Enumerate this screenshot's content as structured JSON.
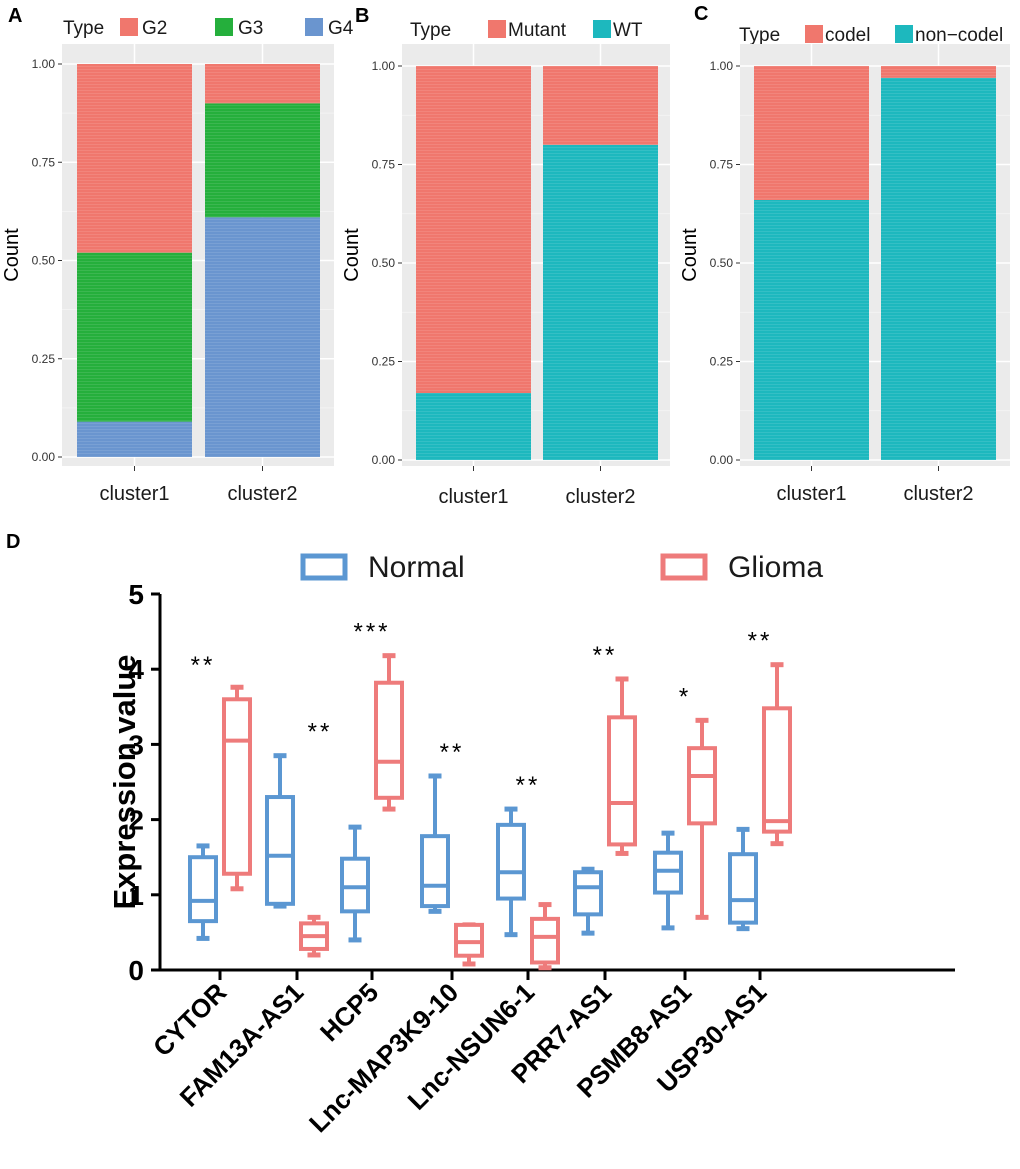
{
  "chart_data": [
    {
      "panel": "A",
      "type": "bar",
      "stacked": true,
      "ylabel": "Count",
      "legend_title": "Type",
      "categories": [
        "cluster1",
        "cluster2"
      ],
      "series": [
        {
          "name": "G2",
          "color": "#F0776D",
          "values": [
            0.48,
            0.1
          ]
        },
        {
          "name": "G3",
          "color": "#25AF3C",
          "values": [
            0.43,
            0.29
          ]
        },
        {
          "name": "G4",
          "color": "#6A95CF",
          "values": [
            0.09,
            0.61
          ]
        }
      ],
      "ylim": [
        0,
        1
      ],
      "yticks": [
        "0.00",
        "0.25",
        "0.50",
        "0.75",
        "1.00"
      ]
    },
    {
      "panel": "B",
      "type": "bar",
      "stacked": true,
      "ylabel": "Count",
      "legend_title": "Type",
      "categories": [
        "cluster1",
        "cluster2"
      ],
      "series": [
        {
          "name": "Mutant",
          "color": "#F0776D",
          "values": [
            0.83,
            0.2
          ]
        },
        {
          "name": "WT",
          "color": "#1DB8BE",
          "values": [
            0.17,
            0.8
          ]
        }
      ],
      "ylim": [
        0,
        1
      ],
      "yticks": [
        "0.00",
        "0.25",
        "0.50",
        "0.75",
        "1.00"
      ]
    },
    {
      "panel": "C",
      "type": "bar",
      "stacked": true,
      "ylabel": "Count",
      "legend_title": "Type",
      "categories": [
        "cluster1",
        "cluster2"
      ],
      "series": [
        {
          "name": "codel",
          "color": "#F0776D",
          "values": [
            0.34,
            0.03
          ]
        },
        {
          "name": "non−codel",
          "color": "#1DB8BE",
          "values": [
            0.66,
            0.97
          ]
        }
      ],
      "ylim": [
        0,
        1
      ],
      "yticks": [
        "0.00",
        "0.25",
        "0.50",
        "0.75",
        "1.00"
      ]
    },
    {
      "panel": "D",
      "type": "box",
      "ylabel": "Expression value",
      "ylim": [
        0,
        5
      ],
      "yticks": [
        "0",
        "1",
        "2",
        "3",
        "4",
        "5"
      ],
      "legend": [
        {
          "name": "Normal",
          "color": "#5B97D2"
        },
        {
          "name": "Glioma",
          "color": "#EE7B7B"
        }
      ],
      "categories": [
        "CYTOR",
        "FAM13A-AS1",
        "HCP5",
        "Lnc-MAP3K9-10",
        "Lnc-NSUN6-1",
        "PRR7-AS1",
        "PSMB8-AS1",
        "USP30-AS1"
      ],
      "significance": [
        "**",
        "**",
        "***",
        "**",
        "**",
        "**",
        "*",
        "**"
      ],
      "normal": [
        {
          "min": 0.42,
          "q1": 0.65,
          "median": 0.92,
          "q3": 1.5,
          "max": 1.65
        },
        {
          "min": 0.85,
          "q1": 0.88,
          "median": 1.52,
          "q3": 2.3,
          "max": 2.85
        },
        {
          "min": 0.4,
          "q1": 0.78,
          "median": 1.1,
          "q3": 1.48,
          "max": 1.9
        },
        {
          "min": 0.78,
          "q1": 0.85,
          "median": 1.12,
          "q3": 1.78,
          "max": 2.58
        },
        {
          "min": 0.47,
          "q1": 0.95,
          "median": 1.3,
          "q3": 1.93,
          "max": 2.14
        },
        {
          "min": 0.49,
          "q1": 0.74,
          "median": 1.1,
          "q3": 1.3,
          "max": 1.34
        },
        {
          "min": 0.56,
          "q1": 1.03,
          "median": 1.32,
          "q3": 1.56,
          "max": 1.82
        },
        {
          "min": 0.55,
          "q1": 0.63,
          "median": 0.93,
          "q3": 1.54,
          "max": 1.87
        }
      ],
      "glioma": [
        {
          "min": 1.08,
          "q1": 1.28,
          "median": 3.05,
          "q3": 3.6,
          "max": 3.76
        },
        {
          "min": 0.2,
          "q1": 0.28,
          "median": 0.45,
          "q3": 0.62,
          "max": 0.7
        },
        {
          "min": 2.14,
          "q1": 2.29,
          "median": 2.77,
          "q3": 3.82,
          "max": 4.18
        },
        {
          "min": 0.08,
          "q1": 0.19,
          "median": 0.37,
          "q3": 0.6,
          "max": 0.6
        },
        {
          "min": 0.03,
          "q1": 0.1,
          "median": 0.44,
          "q3": 0.68,
          "max": 0.87
        },
        {
          "min": 1.55,
          "q1": 1.67,
          "median": 2.22,
          "q3": 3.36,
          "max": 3.87
        },
        {
          "min": 0.7,
          "q1": 1.95,
          "median": 2.58,
          "q3": 2.95,
          "max": 3.32
        },
        {
          "min": 1.68,
          "q1": 1.84,
          "median": 1.98,
          "q3": 3.48,
          "max": 4.06
        }
      ]
    }
  ]
}
